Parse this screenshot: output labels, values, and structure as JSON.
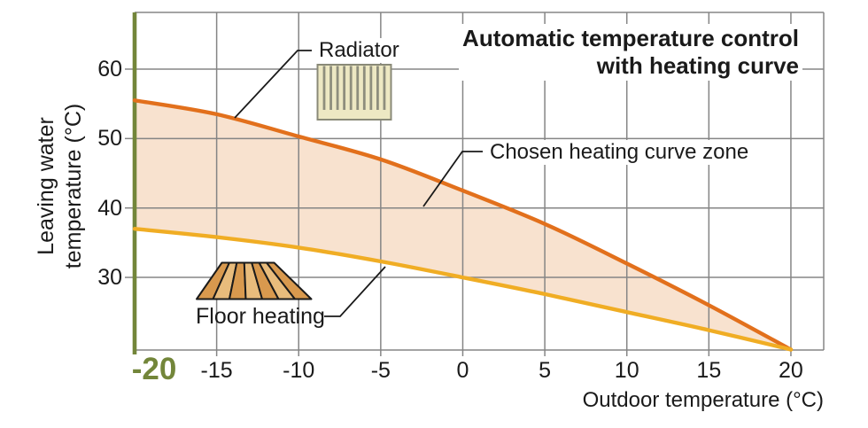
{
  "title": {
    "line1": "Automatic temperature control",
    "line2": "with heating curve"
  },
  "y_axis": {
    "title_line1": "Leaving water",
    "title_line2": "temperature (°C)",
    "tick_labels": [
      "60",
      "50",
      "40",
      "30"
    ],
    "tick_values": [
      60,
      50,
      40,
      30
    ]
  },
  "x_axis": {
    "title": "Outdoor temperature (°C)",
    "tick_labels": [
      "-20",
      "-15",
      "-10",
      "-5",
      "0",
      "5",
      "10",
      "15",
      "20"
    ],
    "tick_values": [
      -20,
      -15,
      -10,
      -5,
      0,
      5,
      10,
      15,
      20
    ],
    "highlighted_tick": "-20"
  },
  "annotations": {
    "radiator_label": "Radiator",
    "zone_label": "Chosen heating curve zone",
    "floor_heating_label": "Floor heating"
  },
  "icons": {
    "radiator": "radiator-icon",
    "floor_heating": "floor-heating-icon"
  },
  "colors": {
    "radiator_curve": "#E2701C",
    "floor_curve": "#F0AD24",
    "zone_fill": "#F8E2CF",
    "accent_green": "#73863A",
    "grid": "#858585",
    "text": "#1A1A1A",
    "radiator_icon_fill": "#EDE8C3",
    "radiator_icon_border": "#8A8A78",
    "radiator_icon_bars": "#8E8E7D",
    "floor_icon_dark": "#D8994E",
    "floor_icon_light": "#E8BC7C",
    "leader_line": "#1A1A1A"
  },
  "chart_data": {
    "type": "area",
    "title": "Automatic temperature control with heating curve",
    "xlabel": "Outdoor temperature (°C)",
    "ylabel": "Leaving water temperature (°C)",
    "x": [
      -20,
      -15,
      -10,
      -5,
      0,
      5,
      10,
      15,
      20
    ],
    "series": [
      {
        "name": "Radiator (upper curve)",
        "color": "#E2701C",
        "values": [
          55.5,
          53.5,
          50.3,
          47.0,
          42.5,
          37.7,
          32.0,
          26.0,
          19.6
        ]
      },
      {
        "name": "Floor heating (lower curve)",
        "color": "#F0AD24",
        "values": [
          37.0,
          35.8,
          34.3,
          32.3,
          30.0,
          27.6,
          25.0,
          22.4,
          19.6
        ]
      }
    ],
    "zone": {
      "label": "Chosen heating curve zone",
      "fill": "#F8E2CF",
      "between": [
        "Radiator (upper curve)",
        "Floor heating (lower curve)"
      ]
    },
    "xlim": [
      -20,
      22
    ],
    "ylim": [
      19.6,
      68.2
    ],
    "x_gridlines_every": 5,
    "y_gridlines_every": 10,
    "grid": true,
    "highlighted_x": -20
  }
}
